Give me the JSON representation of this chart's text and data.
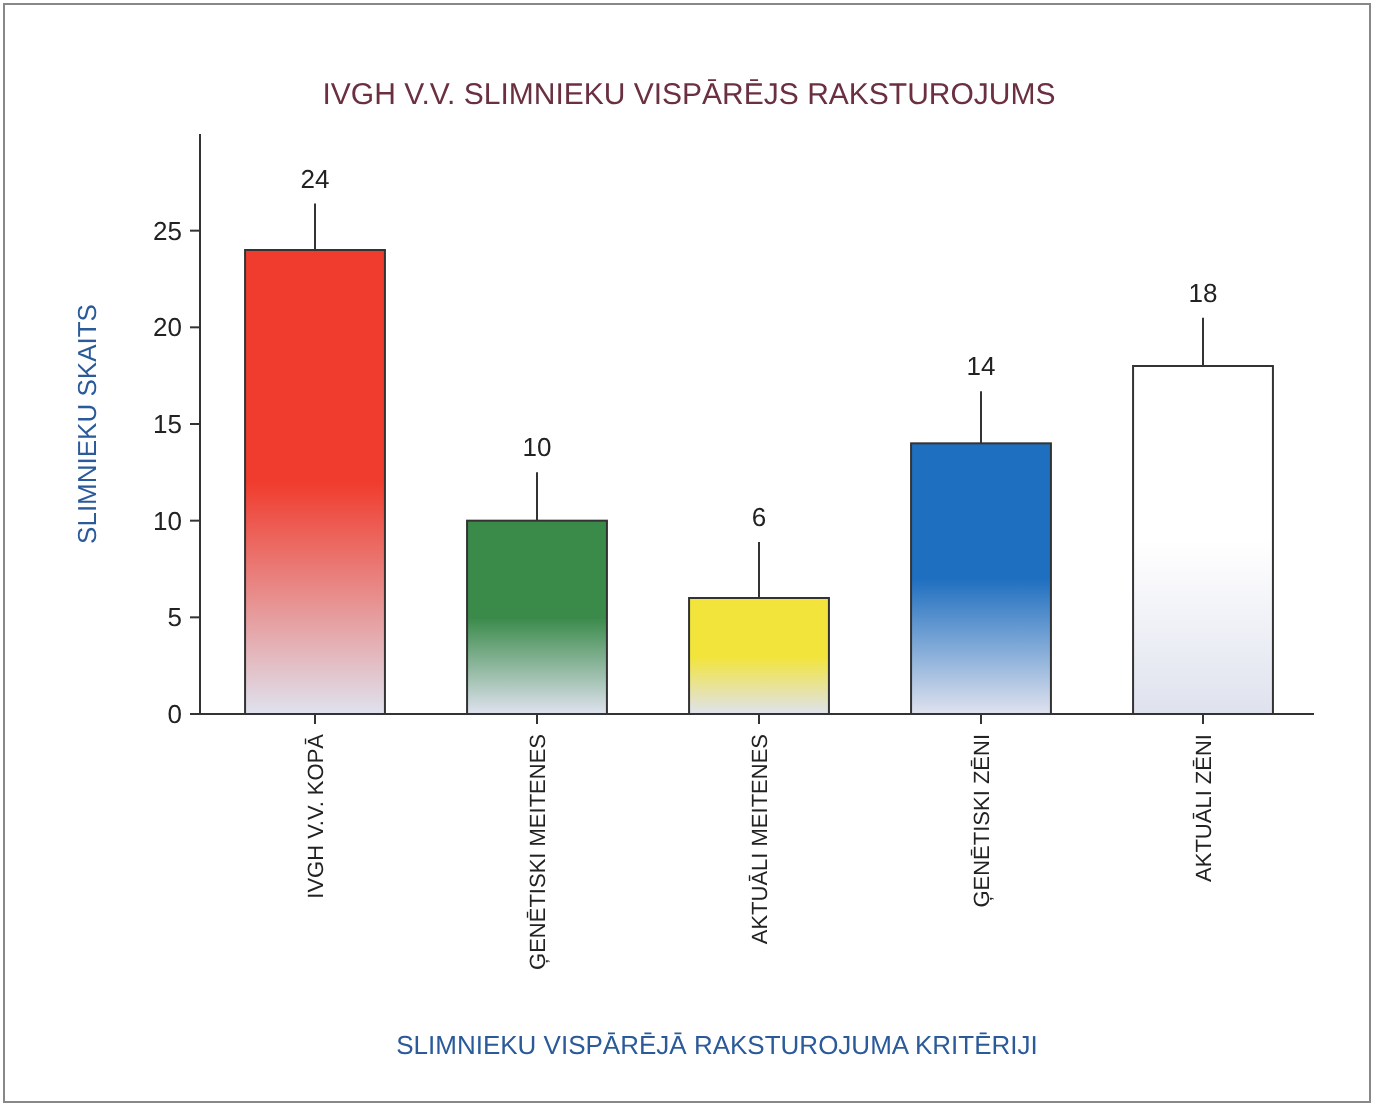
{
  "chart_data": {
    "type": "bar",
    "title": "IVGH V.V. SLIMNIEKU VISPĀRĒJS RAKSTUROJUMS",
    "xlabel": "SLIMNIEKU VISPĀRĒJĀ RAKSTUROJUMA KRITĒRIJI",
    "ylabel": "SLIMNIEKU SKAITS",
    "categories": [
      "IVGH V.V. KOPĀ",
      "ĢENĒTISKI MEITENES",
      "AKTUĀLI MEITENES",
      "ĢENĒTISKI ZĒNI",
      "AKTUĀLI ZĒNI"
    ],
    "values": [
      24,
      10,
      6,
      14,
      18
    ],
    "colors": [
      "#f03c2e",
      "#3a8a4a",
      "#f2e43a",
      "#1f6fc0",
      "#ffffff"
    ],
    "errors": [
      [
        24,
        26.4
      ],
      [
        10,
        12.5
      ],
      [
        6,
        8.9
      ],
      [
        14,
        16.7
      ],
      [
        18,
        20.5
      ]
    ],
    "ylim": [
      0,
      30
    ],
    "yticks": [
      0,
      5,
      10,
      15,
      20,
      25
    ],
    "grid": false,
    "data_labels": true
  }
}
